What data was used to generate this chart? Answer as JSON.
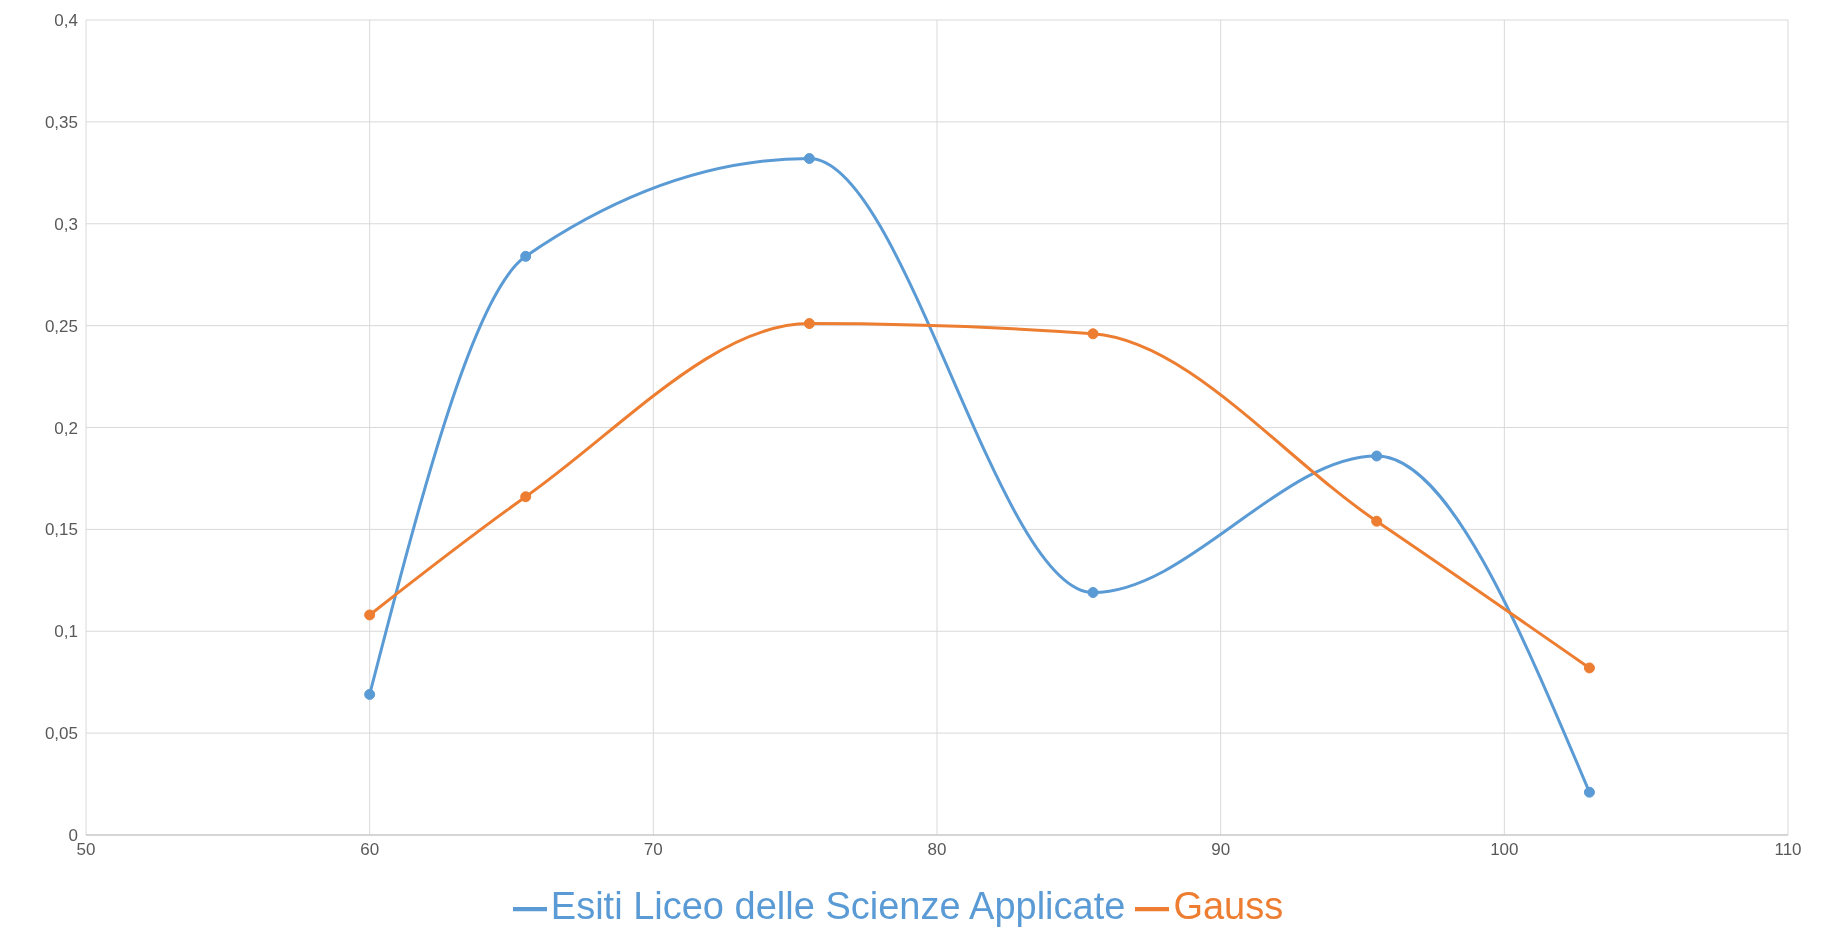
{
  "chart_data": {
    "type": "line",
    "x": [
      60,
      65.5,
      75.5,
      85.5,
      95.5,
      103
    ],
    "series": [
      {
        "name": "Esiti Liceo delle Scienze Applicate",
        "color": "#5b9bd5",
        "values": [
          0.069,
          0.284,
          0.332,
          0.119,
          0.186,
          0.021
        ]
      },
      {
        "name": "Gauss",
        "color": "#ed7d31",
        "values": [
          0.108,
          0.166,
          0.251,
          0.246,
          0.154,
          0.082
        ]
      }
    ],
    "xlim": [
      50,
      110
    ],
    "xticks": [
      50,
      60,
      70,
      80,
      90,
      100,
      110
    ],
    "ylim": [
      0,
      0.4
    ],
    "yticks": [
      0,
      {
        "value": 0.05,
        "label": "0,05"
      },
      {
        "value": 0.1,
        "label": "0,1"
      },
      {
        "value": 0.15,
        "label": "0,15"
      },
      {
        "value": 0.2,
        "label": "0,2"
      },
      {
        "value": 0.25,
        "label": "0,25"
      },
      {
        "value": 0.3,
        "label": "0,3"
      },
      {
        "value": 0.35,
        "label": "0,35"
      },
      {
        "value": 0.4,
        "label": "0,4"
      }
    ],
    "grid": true,
    "legend": "bottom",
    "marker": "circle",
    "line_style": "solid"
  }
}
